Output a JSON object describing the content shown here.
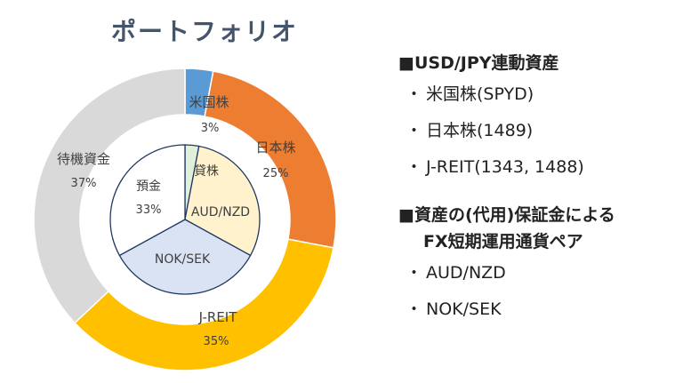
{
  "title": "ポートフォリオ",
  "colors": {
    "title": "#44546a",
    "outer_border": "#ffffff",
    "inner_border": "#1f3864"
  },
  "chart_data": [
    {
      "type": "pie",
      "ring": "outer",
      "slices": [
        {
          "label": "米国株",
          "value": 3,
          "display": "3%",
          "color": "#5b9bd5"
        },
        {
          "label": "日本株",
          "value": 25,
          "display": "25%",
          "color": "#ed7d31"
        },
        {
          "label": "J-REIT",
          "value": 35,
          "display": "35%",
          "color": "#ffc000"
        },
        {
          "label": "待機資金",
          "value": 37,
          "display": "37%",
          "color": "#d9d9d9"
        }
      ]
    },
    {
      "type": "pie",
      "ring": "inner",
      "slices": [
        {
          "label": "貸株",
          "value": 3,
          "display": "",
          "color": "#e2f0d9"
        },
        {
          "label": "AUD/NZD",
          "value": 30,
          "display": "",
          "color": "#fff2cc"
        },
        {
          "label": "NOK/SEK",
          "value": 34,
          "display": "",
          "color": "#dae3f3"
        },
        {
          "label": "預金",
          "value": 33,
          "display": "33%",
          "color": "#ffffff"
        }
      ]
    }
  ],
  "legend": {
    "section1": {
      "title": "■USD/JPY連動資産",
      "items": [
        "米国株(SPYD)",
        "日本株(1489)",
        "J-REIT(1343, 1488)"
      ]
    },
    "section2": {
      "title": "■資産の(代用)保証金による",
      "subtitle": "FX短期運用通貨ペア",
      "items": [
        "AUD/NZD",
        "NOK/SEK"
      ]
    }
  }
}
